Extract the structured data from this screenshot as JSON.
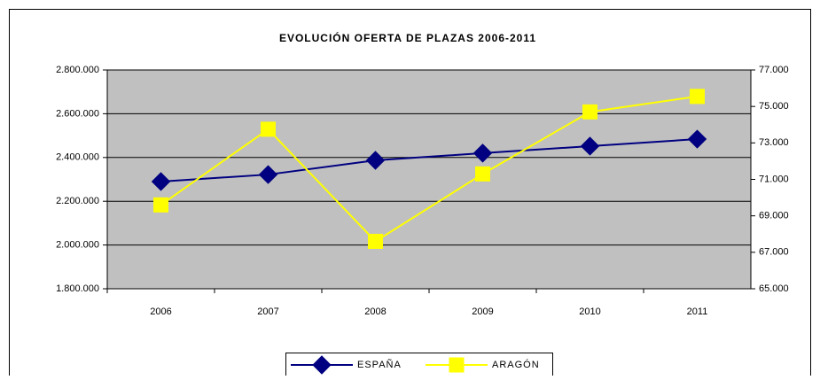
{
  "chart_data": {
    "type": "line",
    "title": "EVOLUCIÓN OFERTA DE PLAZAS 2006-2011",
    "categories": [
      "2006",
      "2007",
      "2008",
      "2009",
      "2010",
      "2011"
    ],
    "series": [
      {
        "name": "ESPAÑA",
        "color": "#000080",
        "marker": "diamond",
        "values": [
          2290000,
          2322000,
          2387000,
          2420000,
          2452000,
          2484000
        ]
      },
      {
        "name": "ARAGÓN",
        "color": "#ffff00",
        "marker": "square",
        "axis": "y2",
        "values": [
          69600,
          73750,
          67600,
          71300,
          74700,
          75550
        ]
      }
    ],
    "ylim": [
      1800000,
      2800000
    ],
    "yticks": [
      {
        "value": 1800000,
        "label": "1.800.000"
      },
      {
        "value": 2000000,
        "label": "2.000.000"
      },
      {
        "value": 2200000,
        "label": "2.200.000"
      },
      {
        "value": 2400000,
        "label": "2.400.000"
      },
      {
        "value": 2600000,
        "label": "2.600.000"
      },
      {
        "value": 2800000,
        "label": "2.800.000"
      }
    ],
    "y2lim": [
      65000,
      77000
    ],
    "y2ticks": [
      {
        "value": 65000,
        "label": "65.000"
      },
      {
        "value": 67000,
        "label": "67.000"
      },
      {
        "value": 69000,
        "label": "69.000"
      },
      {
        "value": 71000,
        "label": "71.000"
      },
      {
        "value": 73000,
        "label": "73.000"
      },
      {
        "value": 75000,
        "label": "75.000"
      },
      {
        "value": 77000,
        "label": "77.000"
      }
    ],
    "grid": true,
    "plot_background": "#c0c0c0",
    "legend": "bottom"
  }
}
